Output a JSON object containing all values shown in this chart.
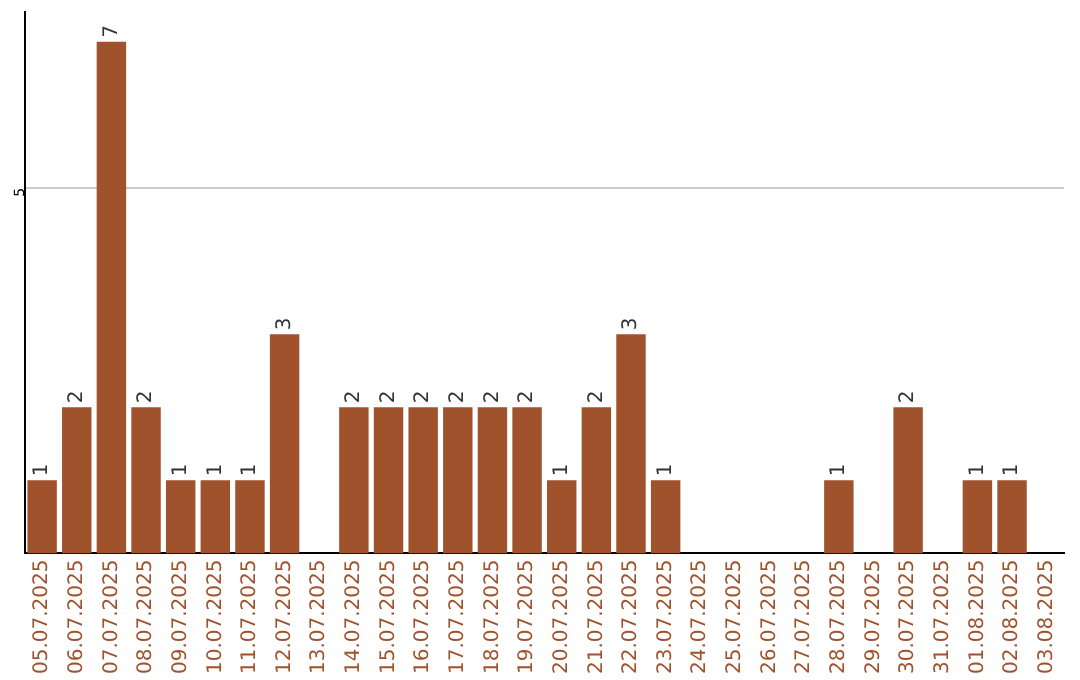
{
  "chart_data": {
    "type": "bar",
    "categories": [
      "05.07.2025",
      "06.07.2025",
      "07.07.2025",
      "08.07.2025",
      "09.07.2025",
      "10.07.2025",
      "11.07.2025",
      "12.07.2025",
      "13.07.2025",
      "14.07.2025",
      "15.07.2025",
      "16.07.2025",
      "17.07.2025",
      "18.07.2025",
      "19.07.2025",
      "20.07.2025",
      "21.07.2025",
      "22.07.2025",
      "23.07.2025",
      "24.07.2025",
      "25.07.2025",
      "26.07.2025",
      "27.07.2025",
      "28.07.2025",
      "29.07.2025",
      "30.07.2025",
      "31.07.2025",
      "01.08.2025",
      "02.08.2025",
      "03.08.2025"
    ],
    "values": [
      1,
      2,
      7,
      2,
      1,
      1,
      1,
      3,
      null,
      2,
      2,
      2,
      2,
      2,
      2,
      1,
      2,
      3,
      1,
      null,
      null,
      null,
      null,
      1,
      null,
      2,
      null,
      1,
      1,
      null
    ],
    "color": "#a0522d",
    "ylim": [
      0,
      7.4
    ],
    "yticks": [
      5
    ],
    "grid": "y",
    "data_labels": true,
    "legend": false
  }
}
